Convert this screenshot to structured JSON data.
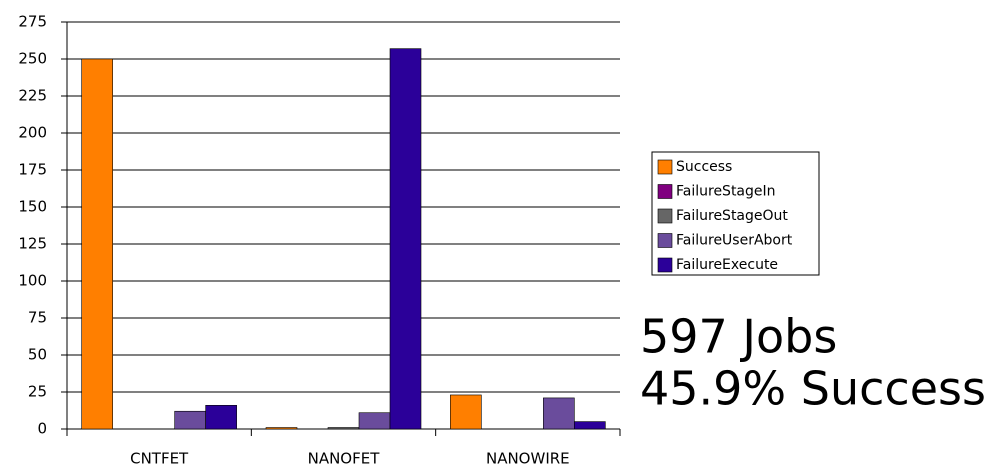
{
  "chart_data": {
    "type": "bar",
    "categories": [
      "CNTFET",
      "NANOFET",
      "NANOWIRE"
    ],
    "series": [
      {
        "name": "Success",
        "color": "#ff7f00",
        "values": [
          250,
          1,
          23
        ]
      },
      {
        "name": "FailureStageIn",
        "color": "#800080",
        "values": [
          0,
          0,
          0
        ]
      },
      {
        "name": "FailureStageOut",
        "color": "#666666",
        "values": [
          0,
          1,
          0
        ]
      },
      {
        "name": "FailureUserAbort",
        "color": "#6a4c9c",
        "values": [
          12,
          11,
          21
        ]
      },
      {
        "name": "FailureExecute",
        "color": "#2b0099",
        "values": [
          16,
          257,
          5
        ]
      }
    ],
    "ylim": [
      0,
      275
    ],
    "yticks": [
      0,
      25,
      50,
      75,
      100,
      125,
      150,
      175,
      200,
      225,
      250,
      275
    ],
    "grid": true,
    "legend": "right",
    "annotations": [
      "597 Jobs",
      "45.9% Success"
    ]
  }
}
